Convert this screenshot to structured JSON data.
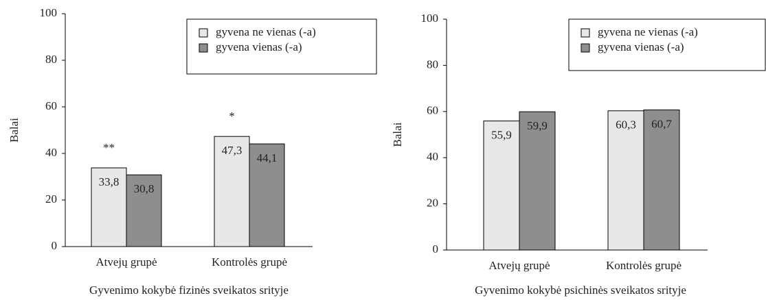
{
  "chart_data": [
    {
      "type": "bar",
      "xlabel": "Gyvenimo kokybė fizinės sveikatos srityje",
      "ylabel": "Balai",
      "categories": [
        "Atvejų grupė",
        "Kontrolės grupė"
      ],
      "series": [
        {
          "name": "gyvena ne vienas (-a)",
          "color": "#e8e8e8",
          "values": [
            33.8,
            47.3
          ],
          "value_labels": [
            "33,8",
            "47,3"
          ]
        },
        {
          "name": "gyvena vienas (-a)",
          "color": "#8e8e8e",
          "values": [
            30.8,
            44.1
          ],
          "value_labels": [
            "30,8",
            "44,1"
          ]
        }
      ],
      "annotations": [
        "**",
        "*"
      ],
      "ylim": [
        0,
        100
      ],
      "yticks": [
        0,
        20,
        40,
        60,
        80,
        100
      ],
      "legend": "top-right"
    },
    {
      "type": "bar",
      "xlabel": "Gyvenimo kokybė psichinės sveikatos srityje",
      "ylabel": "Balai",
      "categories": [
        "Atvejų grupė",
        "Kontrolės grupė"
      ],
      "series": [
        {
          "name": "gyvena ne vienas (-a)",
          "color": "#e8e8e8",
          "values": [
            55.9,
            60.3
          ],
          "value_labels": [
            "55,9",
            "60,3"
          ]
        },
        {
          "name": "gyvena vienas (-a)",
          "color": "#8e8e8e",
          "values": [
            59.9,
            60.7
          ],
          "value_labels": [
            "59,9",
            "60,7"
          ]
        }
      ],
      "ylim": [
        0,
        100
      ],
      "yticks": [
        0,
        20,
        40,
        60,
        80,
        100
      ],
      "legend": "top-right"
    }
  ]
}
